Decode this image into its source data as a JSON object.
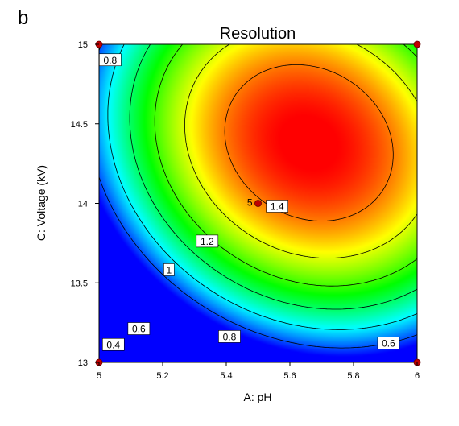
{
  "panel_label": "b",
  "chart_data": {
    "type": "heatmap",
    "title": "Resolution",
    "xlabel": "A: pH",
    "ylabel": "C: Voltage (kV)",
    "xlim": [
      5,
      6
    ],
    "ylim": [
      13,
      15
    ],
    "x_ticks": [
      "5",
      "5.2",
      "5.4",
      "5.6",
      "5.8",
      "6"
    ],
    "y_ticks": [
      "13",
      "13.5",
      "14",
      "14.5",
      "15"
    ],
    "contour_levels": [
      0.4,
      0.6,
      0.8,
      1,
      1.2,
      1.4
    ],
    "value_range": [
      0.3,
      1.55
    ],
    "colormap": [
      "#0000ff",
      "#00ffff",
      "#00ff00",
      "#ffff00",
      "#ff0000"
    ],
    "contour_labels": [
      {
        "text": "0.8",
        "x": 5.035,
        "y": 14.9
      },
      {
        "text": "1.4",
        "x": 5.56,
        "y": 13.98
      },
      {
        "text": "1.2",
        "x": 5.34,
        "y": 13.76
      },
      {
        "text": "1",
        "x": 5.22,
        "y": 13.58
      },
      {
        "text": "0.8",
        "x": 5.41,
        "y": 13.16
      },
      {
        "text": "0.6",
        "x": 5.125,
        "y": 13.21
      },
      {
        "text": "0.4",
        "x": 5.045,
        "y": 13.11
      },
      {
        "text": "0.6",
        "x": 5.91,
        "y": 13.12
      }
    ],
    "design_points": [
      {
        "x": 5,
        "y": 15
      },
      {
        "x": 6,
        "y": 15
      },
      {
        "x": 5,
        "y": 13
      },
      {
        "x": 6,
        "y": 13
      },
      {
        "x": 5.5,
        "y": 14,
        "replicates": "5"
      }
    ]
  }
}
